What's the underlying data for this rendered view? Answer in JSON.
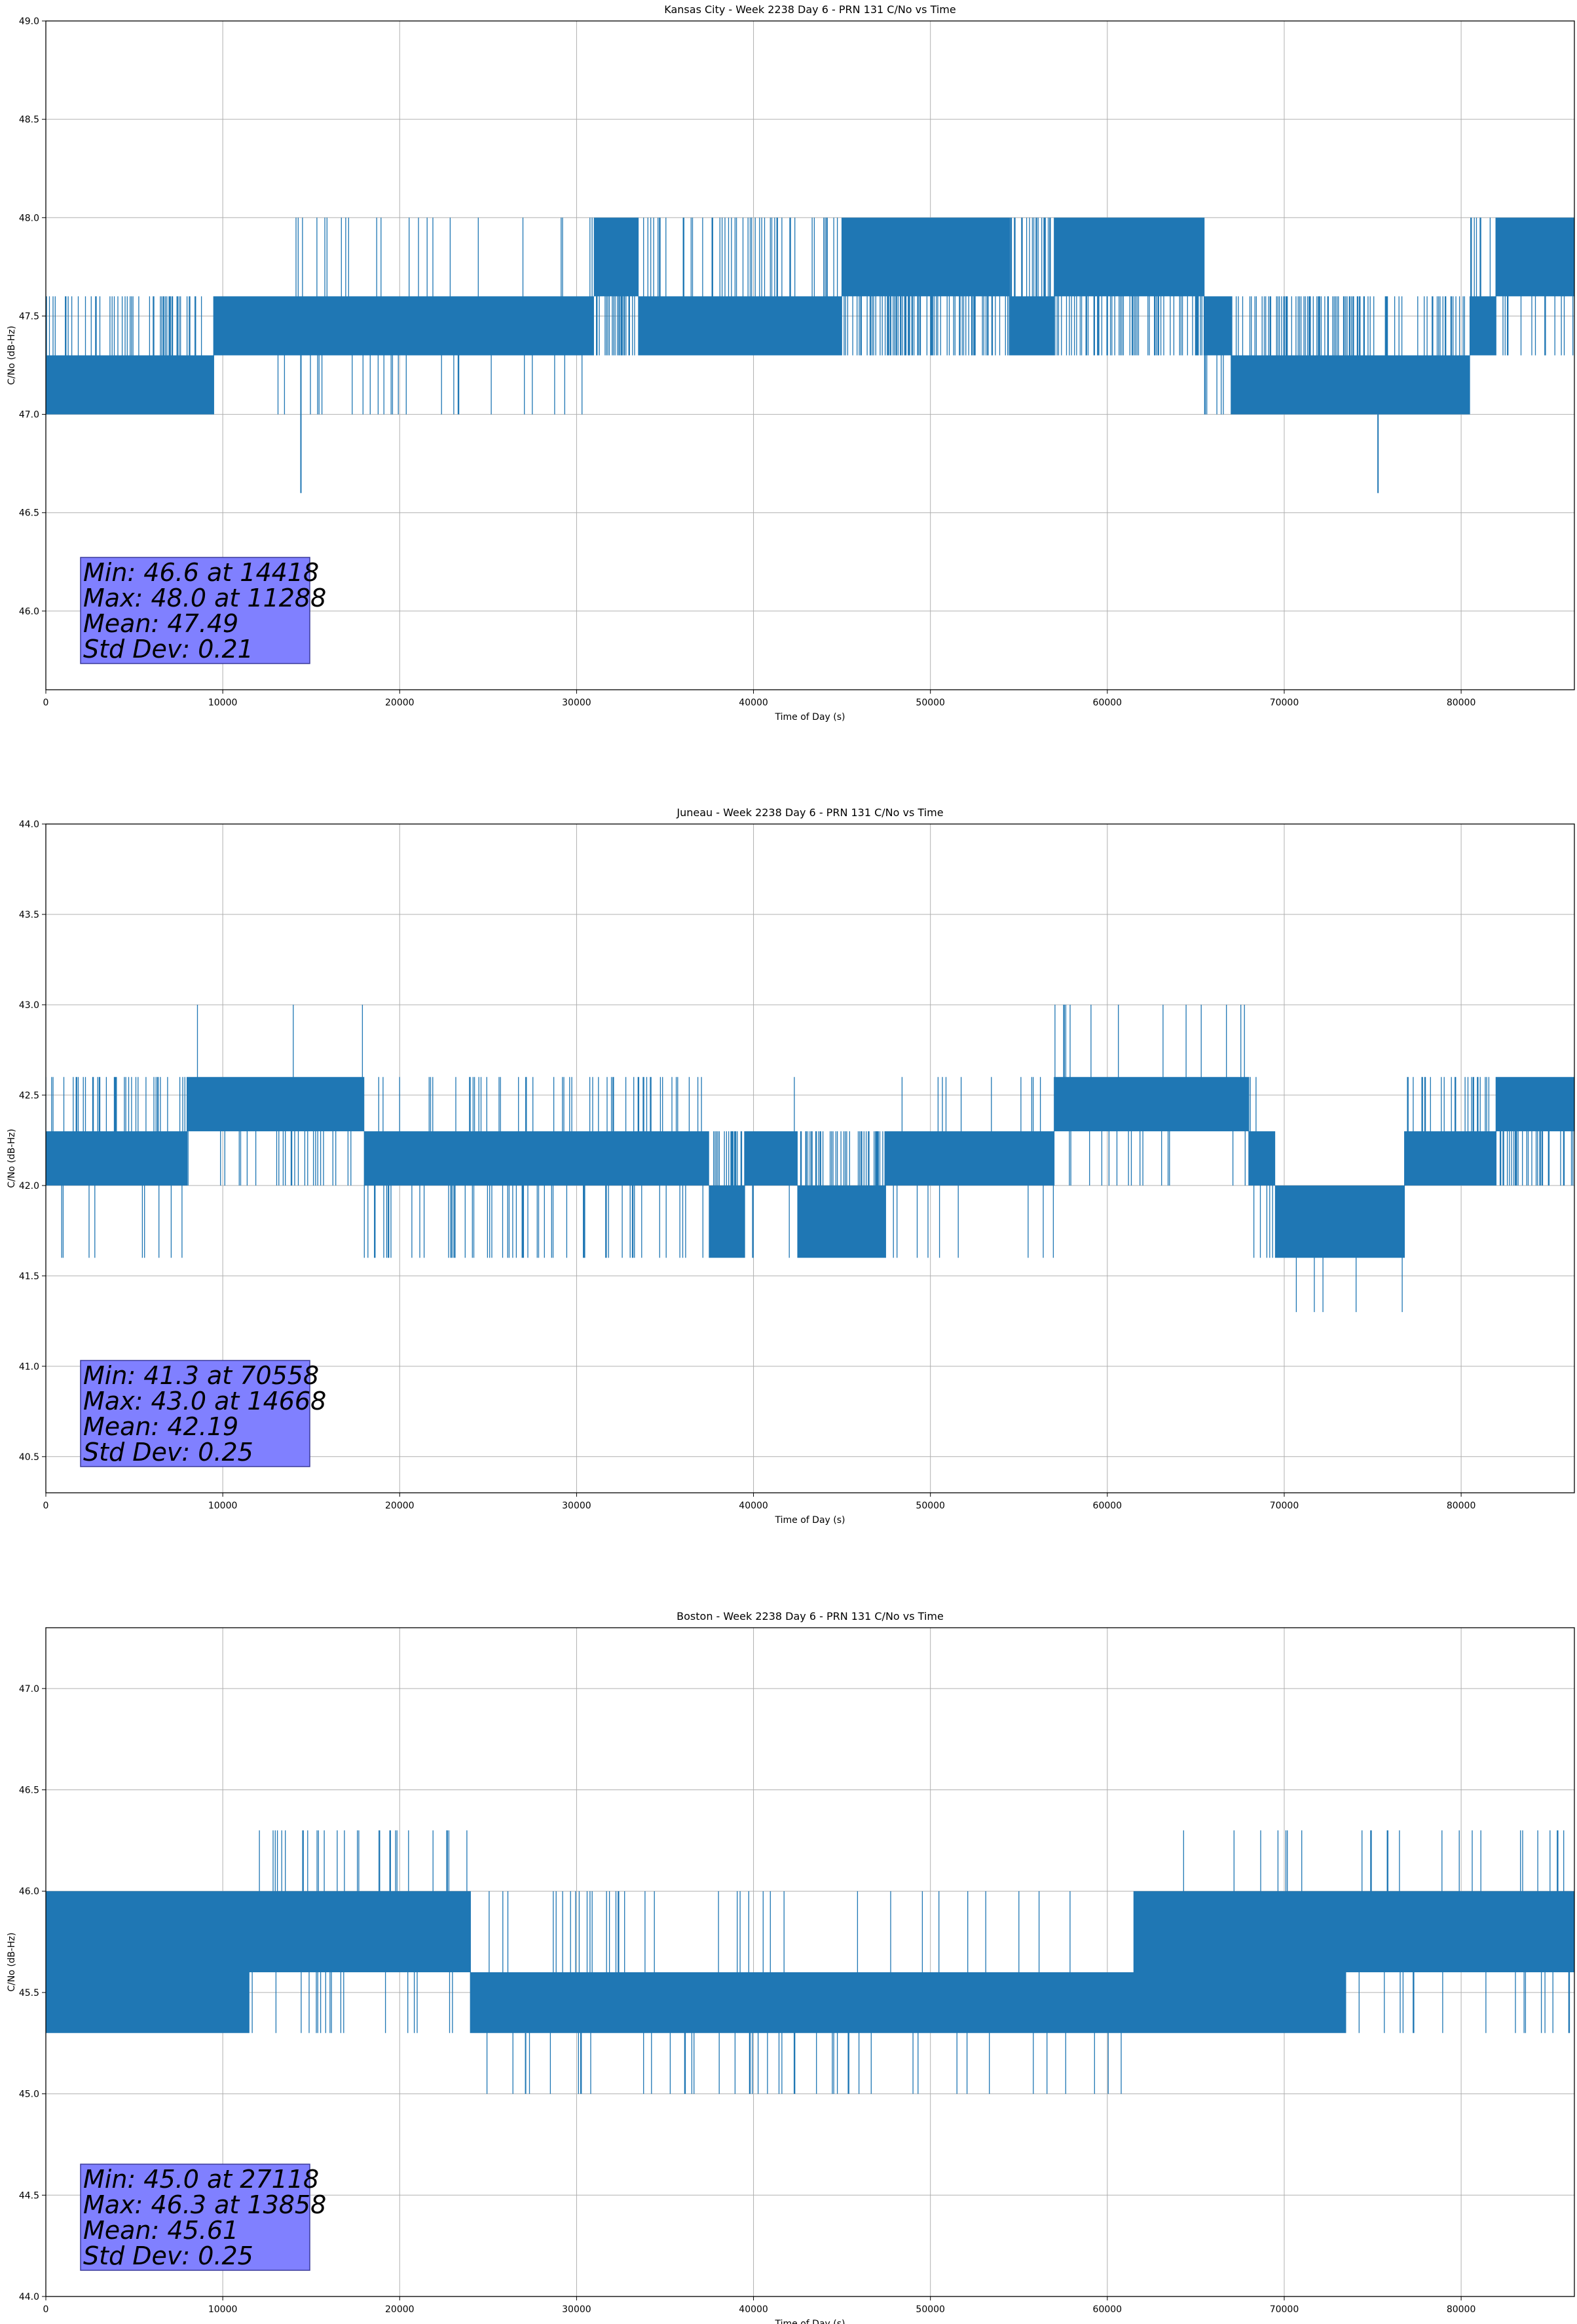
{
  "chart_data": [
    {
      "type": "line",
      "title": "Kansas City - Week 2238 Day 6 - PRN 131 C/No vs Time",
      "xlabel": "Time of Day (s)",
      "ylabel": "C/No (dB-Hz)",
      "xlim": [
        0,
        86400
      ],
      "ylim": [
        45.6,
        49.0
      ],
      "xticks": [
        0,
        10000,
        20000,
        30000,
        40000,
        50000,
        60000,
        70000,
        80000
      ],
      "xtick_labels": [
        "0",
        "10000",
        "20000",
        "30000",
        "40000",
        "50000",
        "60000",
        "70000",
        "80000"
      ],
      "yticks": [
        46.0,
        46.5,
        47.0,
        47.5,
        48.0,
        48.5,
        49.0
      ],
      "ytick_labels": [
        "46.0",
        "46.5",
        "47.0",
        "47.5",
        "48.0",
        "48.5",
        "49.0"
      ],
      "grid": true,
      "color": "#1f77b4",
      "quant_levels": [
        46.6,
        47.0,
        47.3,
        47.6,
        48.0
      ],
      "segments": [
        {
          "x": [
            0,
            9500
          ],
          "base": [
            47.0,
            47.3
          ],
          "up": 47.6,
          "down": null,
          "flicker_up": 0.25,
          "flicker_down": 0
        },
        {
          "x": [
            9500,
            31000
          ],
          "base": [
            47.3,
            47.6
          ],
          "up": 48.0,
          "down": 47.0,
          "flicker_up": 0.04,
          "flicker_down": 0.05
        },
        {
          "x": [
            31000,
            33500
          ],
          "base": [
            47.6,
            48.0
          ],
          "up": null,
          "down": 47.3,
          "flicker_up": 0,
          "flicker_down": 0.3
        },
        {
          "x": [
            33500,
            45000
          ],
          "base": [
            47.3,
            47.6
          ],
          "up": 48.0,
          "down": null,
          "flicker_up": 0.12,
          "flicker_down": 0
        },
        {
          "x": [
            45000,
            54500
          ],
          "base": [
            47.6,
            48.0
          ],
          "up": null,
          "down": 47.3,
          "flicker_up": 0,
          "flicker_down": 0.35
        },
        {
          "x": [
            54500,
            57000
          ],
          "base": [
            47.3,
            47.6
          ],
          "up": 48.0,
          "down": null,
          "flicker_up": 0.3,
          "flicker_down": 0
        },
        {
          "x": [
            57000,
            65500
          ],
          "base": [
            47.6,
            48.0
          ],
          "up": null,
          "down": 47.3,
          "flicker_up": 0,
          "flicker_down": 0.3
        },
        {
          "x": [
            65500,
            67000
          ],
          "base": [
            47.3,
            47.6
          ],
          "up": null,
          "down": 47.0,
          "flicker_up": 0,
          "flicker_down": 0.1
        },
        {
          "x": [
            67000,
            80500
          ],
          "base": [
            47.0,
            47.3
          ],
          "up": 47.6,
          "down": null,
          "flicker_up": 0.25,
          "flicker_down": 0
        },
        {
          "x": [
            80500,
            82000
          ],
          "base": [
            47.3,
            47.6
          ],
          "up": 48.0,
          "down": null,
          "flicker_up": 0.2,
          "flicker_down": 0
        },
        {
          "x": [
            82000,
            86400
          ],
          "base": [
            47.6,
            48.0
          ],
          "up": null,
          "down": 47.3,
          "flicker_up": 0,
          "flicker_down": 0.2
        }
      ],
      "spikes": [
        {
          "x": 14418,
          "from": 47.3,
          "to": 46.6
        },
        {
          "x": 75300,
          "from": 47.0,
          "to": 46.6
        }
      ],
      "stats": {
        "lines": [
          "Min: 46.6 at 14418",
          "Max: 48.0 at 11288",
          "Mean: 47.49",
          "Std Dev: 0.21"
        ],
        "box_color": "#8080ff"
      }
    },
    {
      "type": "line",
      "title": "Juneau - Week 2238 Day 6 - PRN 131 C/No vs Time",
      "xlabel": "Time of Day (s)",
      "ylabel": "C/No (dB-Hz)",
      "xlim": [
        0,
        86400
      ],
      "ylim": [
        40.3,
        44.0
      ],
      "xticks": [
        0,
        10000,
        20000,
        30000,
        40000,
        50000,
        60000,
        70000,
        80000
      ],
      "xtick_labels": [
        "0",
        "10000",
        "20000",
        "30000",
        "40000",
        "50000",
        "60000",
        "70000",
        "80000"
      ],
      "yticks": [
        40.5,
        41.0,
        41.5,
        42.0,
        42.5,
        43.0,
        43.5,
        44.0
      ],
      "ytick_labels": [
        "40.5",
        "41.0",
        "41.5",
        "42.0",
        "42.5",
        "43.0",
        "43.5",
        "44.0"
      ],
      "grid": true,
      "color": "#1f77b4",
      "quant_levels": [
        41.3,
        41.6,
        42.0,
        42.3,
        42.6,
        43.0
      ],
      "segments": [
        {
          "x": [
            0,
            8000
          ],
          "base": [
            42.0,
            42.3
          ],
          "up": 42.6,
          "down": 41.6,
          "flicker_up": 0.15,
          "flicker_down": 0.05
        },
        {
          "x": [
            8000,
            18000
          ],
          "base": [
            42.3,
            42.6
          ],
          "up": 43.0,
          "down": 42.0,
          "flicker_up": 0.01,
          "flicker_down": 0.08
        },
        {
          "x": [
            18000,
            37500
          ],
          "base": [
            42.0,
            42.3
          ],
          "up": 42.6,
          "down": 41.6,
          "flicker_up": 0.12,
          "flicker_down": 0.1
        },
        {
          "x": [
            37500,
            39500
          ],
          "base": [
            41.6,
            42.0
          ],
          "up": 42.3,
          "down": null,
          "flicker_up": 0.3,
          "flicker_down": 0
        },
        {
          "x": [
            39500,
            42500
          ],
          "base": [
            42.0,
            42.3
          ],
          "up": 42.6,
          "down": 41.6,
          "flicker_up": 0.06,
          "flicker_down": 0.06
        },
        {
          "x": [
            42500,
            47500
          ],
          "base": [
            41.6,
            42.0
          ],
          "up": 42.3,
          "down": null,
          "flicker_up": 0.35,
          "flicker_down": 0
        },
        {
          "x": [
            47500,
            57000
          ],
          "base": [
            42.0,
            42.3
          ],
          "up": 42.6,
          "down": 41.6,
          "flicker_up": 0.05,
          "flicker_down": 0.03
        },
        {
          "x": [
            57000,
            68000
          ],
          "base": [
            42.3,
            42.6
          ],
          "up": 43.0,
          "down": 42.0,
          "flicker_up": 0.04,
          "flicker_down": 0.06
        },
        {
          "x": [
            68000,
            69500
          ],
          "base": [
            42.0,
            42.3
          ],
          "up": 42.6,
          "down": 41.6,
          "flicker_up": 0.1,
          "flicker_down": 0.15
        },
        {
          "x": [
            69500,
            76800
          ],
          "base": [
            41.6,
            42.0
          ],
          "up": null,
          "down": 41.3,
          "flicker_up": 0,
          "flicker_down": 0.04
        },
        {
          "x": [
            76800,
            82000
          ],
          "base": [
            42.0,
            42.3
          ],
          "up": 42.6,
          "down": null,
          "flicker_up": 0.15,
          "flicker_down": 0
        },
        {
          "x": [
            82000,
            86400
          ],
          "base": [
            42.3,
            42.6
          ],
          "up": null,
          "down": 42.0,
          "flicker_up": 0,
          "flicker_down": 0.3
        }
      ],
      "spikes": [],
      "stats": {
        "lines": [
          "Min: 41.3 at 70558",
          "Max: 43.0 at 14668",
          "Mean: 42.19",
          "Std Dev: 0.25"
        ],
        "box_color": "#8080ff"
      }
    },
    {
      "type": "line",
      "title": "Boston - Week 2238 Day 6 - PRN 131 C/No vs Time",
      "xlabel": "Time of Day (s)",
      "ylabel": "C/No (dB-Hz)",
      "xlim": [
        0,
        86400
      ],
      "ylim": [
        44.0,
        47.3
      ],
      "xticks": [
        0,
        10000,
        20000,
        30000,
        40000,
        50000,
        60000,
        70000,
        80000
      ],
      "xtick_labels": [
        "0",
        "10000",
        "20000",
        "30000",
        "40000",
        "50000",
        "60000",
        "70000",
        "80000"
      ],
      "yticks": [
        44.0,
        44.5,
        45.0,
        45.5,
        46.0,
        46.5,
        47.0
      ],
      "ytick_labels": [
        "44.0",
        "44.5",
        "45.0",
        "45.5",
        "46.0",
        "46.5",
        "47.0"
      ],
      "grid": true,
      "color": "#1f77b4",
      "quant_levels": [
        45.0,
        45.3,
        45.6,
        46.0,
        46.3
      ],
      "segments": [
        {
          "x": [
            0,
            11500
          ],
          "base": [
            45.3,
            46.0
          ],
          "up": 46.0,
          "down": 45.3,
          "flicker_up": 0.15,
          "flicker_down": 0.2
        },
        {
          "x": [
            11500,
            24000
          ],
          "base": [
            45.6,
            46.0
          ],
          "up": 46.3,
          "down": 45.3,
          "flicker_up": 0.08,
          "flicker_down": 0.06
        },
        {
          "x": [
            24000,
            33500
          ],
          "base": [
            45.3,
            45.6
          ],
          "up": 46.0,
          "down": 45.0,
          "flicker_up": 0.1,
          "flicker_down": 0.02
        },
        {
          "x": [
            33500,
            61500
          ],
          "base": [
            45.3,
            45.6
          ],
          "up": 46.0,
          "down": 45.0,
          "flicker_up": 0.04,
          "flicker_down": 0.05
        },
        {
          "x": [
            61500,
            73500
          ],
          "base": [
            45.3,
            46.0
          ],
          "up": 46.3,
          "down": 45.3,
          "flicker_up": 0.03,
          "flicker_down": 0.12
        },
        {
          "x": [
            73500,
            86400
          ],
          "base": [
            45.6,
            46.0
          ],
          "up": 46.3,
          "down": 45.3,
          "flicker_up": 0.05,
          "flicker_down": 0.05
        }
      ],
      "spikes": [
        {
          "x": 27118,
          "from": 45.3,
          "to": 45.0
        }
      ],
      "stats": {
        "lines": [
          "Min: 45.0 at 27118",
          "Max: 46.3 at 13858",
          "Mean: 45.61",
          "Std Dev: 0.25"
        ],
        "box_color": "#8080ff"
      }
    }
  ]
}
